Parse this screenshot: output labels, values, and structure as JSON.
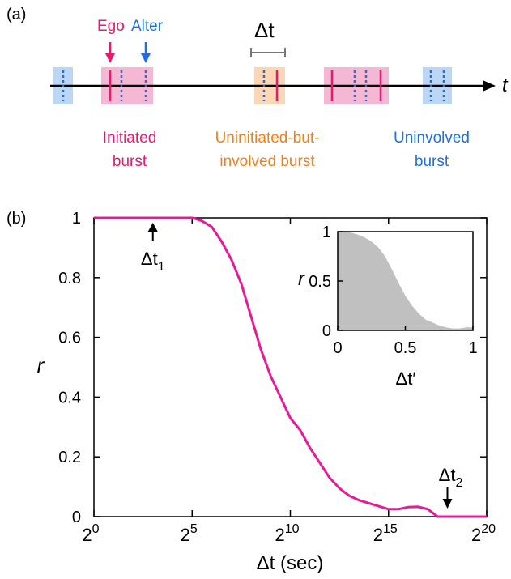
{
  "panel_a": {
    "label": "(a)",
    "ego_label": "Ego",
    "alter_label": "Alter",
    "dt_label": "Δt",
    "t_label": "t",
    "bursts": [
      {
        "kind": "uninvolved",
        "events": [
          "alter"
        ]
      },
      {
        "kind": "initiated",
        "events": [
          "ego",
          "alter",
          "alter"
        ]
      },
      {
        "kind": "uninitiated",
        "events": [
          "alter",
          "ego"
        ]
      },
      {
        "kind": "initiated",
        "events": [
          "ego",
          "alter",
          "alter",
          "ego"
        ]
      },
      {
        "kind": "uninvolved",
        "events": [
          "alter",
          "alter"
        ]
      }
    ],
    "captions": {
      "initiated": [
        "Initiated",
        "burst"
      ],
      "uninitiated": [
        "Uninitiated-but-",
        "involved burst"
      ],
      "uninvolved": [
        "Uninvolved",
        "burst"
      ]
    },
    "colors": {
      "ego": "#e8196e",
      "alter": "#1f6fe0",
      "initiated_fill": "#f5b8d4",
      "uninitiated_fill": "#fbd7b8",
      "uninvolved_fill": "#bcd6f5",
      "initiated_text": "#e8196e",
      "uninitiated_text": "#f07f1e",
      "uninvolved_text": "#1f6fe0"
    }
  },
  "panel_b": {
    "label": "(b)",
    "annotations": {
      "dt1": {
        "base": "Δt",
        "sub": "1",
        "x_log2": 3.0,
        "r": 1.0
      },
      "dt2": {
        "base": "Δt",
        "sub": "2",
        "x_log2": 18.0,
        "r": 0.0
      }
    }
  },
  "chart_data": [
    {
      "type": "line",
      "title": "",
      "xlabel": "Δt (sec)",
      "ylabel": "r",
      "x_scale": "log2",
      "xlim": [
        1,
        1048576
      ],
      "ylim": [
        0,
        1
      ],
      "x_ticks": [
        {
          "base": "2",
          "exp": "0"
        },
        {
          "base": "2",
          "exp": "5"
        },
        {
          "base": "2",
          "exp": "10"
        },
        {
          "base": "2",
          "exp": "15"
        },
        {
          "base": "2",
          "exp": "20"
        }
      ],
      "y_ticks": [
        "0",
        "0.2",
        "0.4",
        "0.6",
        "0.8",
        "1"
      ],
      "color": "#e8199b",
      "series": [
        {
          "x": [
            1,
            2,
            4,
            8,
            16,
            32,
            45,
            64,
            91,
            128,
            181,
            256,
            362,
            512,
            724,
            1024,
            1448,
            2048,
            2896,
            4096,
            5793,
            8192,
            11585,
            16384,
            23170,
            32768,
            46341,
            65536,
            92682,
            131072,
            185364,
            262144,
            370728,
            524288,
            741455,
            1048576
          ],
          "y": [
            1.0,
            1.0,
            1.0,
            1.0,
            1.0,
            1.0,
            0.99,
            0.97,
            0.92,
            0.86,
            0.78,
            0.67,
            0.56,
            0.47,
            0.4,
            0.33,
            0.29,
            0.23,
            0.18,
            0.13,
            0.095,
            0.07,
            0.055,
            0.045,
            0.035,
            0.025,
            0.025,
            0.032,
            0.033,
            0.025,
            0.0,
            0.0,
            0.0,
            0.0,
            0.0,
            0.0
          ]
        }
      ]
    },
    {
      "type": "area",
      "title": "",
      "xlabel": "Δt′",
      "ylabel": "r",
      "xlim": [
        0,
        1
      ],
      "ylim": [
        0,
        1
      ],
      "x_ticks": [
        "0",
        "0.5",
        "1"
      ],
      "y_ticks": [
        "0",
        "0.5",
        "1"
      ],
      "color": "#c0c0c0",
      "series": [
        {
          "x": [
            0,
            0.05,
            0.1,
            0.15,
            0.2,
            0.25,
            0.3,
            0.35,
            0.4,
            0.45,
            0.5,
            0.55,
            0.6,
            0.65,
            0.7,
            0.75,
            0.8,
            0.85,
            0.9,
            0.95,
            1.0
          ],
          "y": [
            1.0,
            1.0,
            0.99,
            0.97,
            0.94,
            0.9,
            0.84,
            0.75,
            0.62,
            0.48,
            0.35,
            0.25,
            0.17,
            0.11,
            0.08,
            0.05,
            0.03,
            0.02,
            0.02,
            0.03,
            0.03
          ]
        }
      ]
    }
  ]
}
